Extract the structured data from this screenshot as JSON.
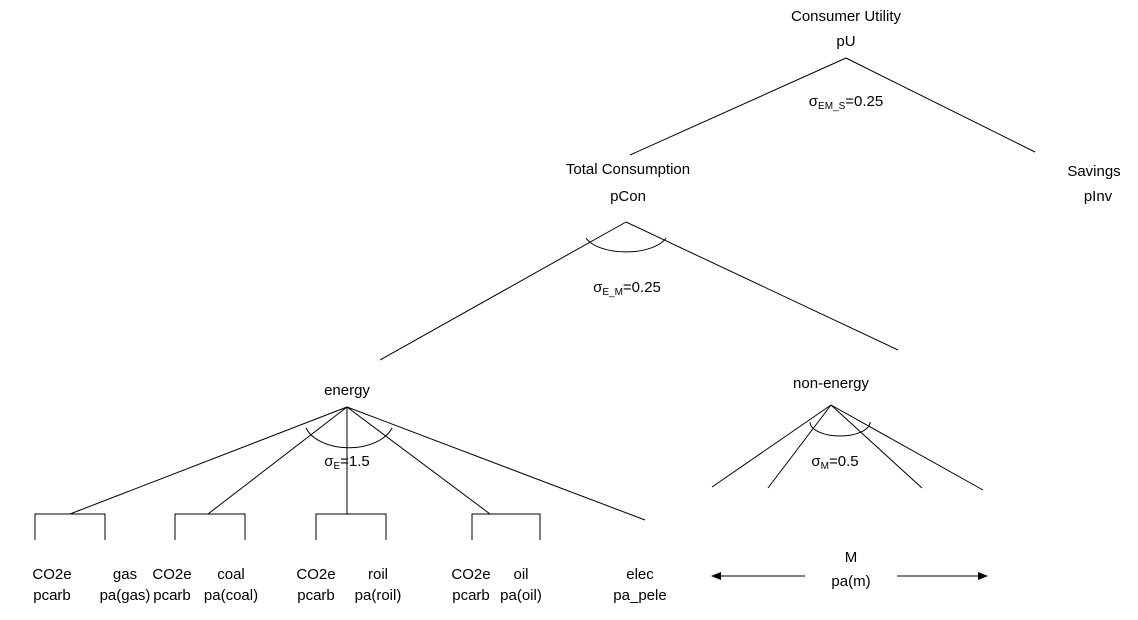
{
  "nodes": {
    "root": {
      "name": "Consumer Utility",
      "price": "pU"
    },
    "savings": {
      "name": "Savings",
      "price": "pInv"
    },
    "consumption": {
      "name": "Total Consumption",
      "price": "pCon"
    },
    "energy": {
      "name": "energy"
    },
    "non_energy": {
      "name": "non-energy"
    },
    "materials": {
      "name": "M",
      "price": "pa(m)"
    }
  },
  "elasticities": [
    {
      "symbol": "σ",
      "subscript": "EM_S",
      "value": "=0.25"
    },
    {
      "symbol": "σ",
      "subscript": "E_M",
      "value": "=0.25"
    },
    {
      "symbol": "σ",
      "subscript": "E",
      "value": "=1.5"
    },
    {
      "symbol": "σ",
      "subscript": "M",
      "value": "=0.5"
    }
  ],
  "leaves": [
    {
      "name": "CO2e",
      "price": "pcarb"
    },
    {
      "name": "gas",
      "price": "pa(gas)"
    },
    {
      "name": "CO2e",
      "price": "pcarb"
    },
    {
      "name": "coal",
      "price": "pa(coal)"
    },
    {
      "name": "CO2e",
      "price": "pcarb"
    },
    {
      "name": "roil",
      "price": "pa(roil)"
    },
    {
      "name": "CO2e",
      "price": "pcarb"
    },
    {
      "name": "oil",
      "price": "pa(oil)"
    },
    {
      "name": "elec",
      "price": "pa_pele"
    }
  ]
}
